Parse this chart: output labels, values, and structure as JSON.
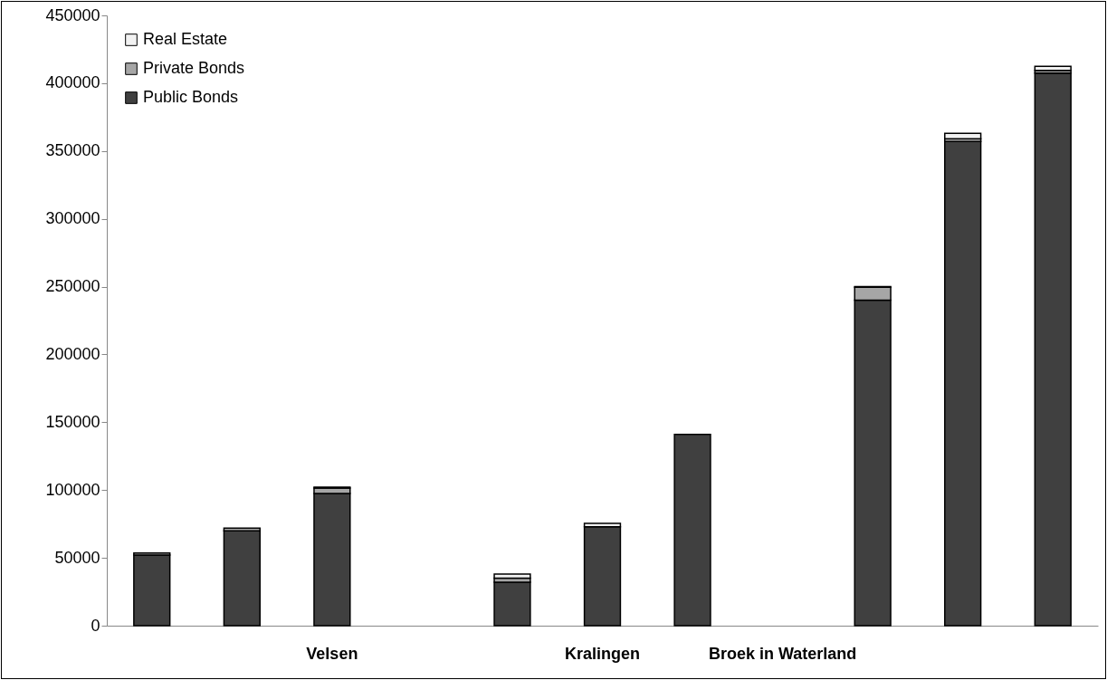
{
  "chart_data": {
    "type": "bar",
    "stacked": true,
    "categories": [
      null,
      null,
      "Velsen",
      null,
      null,
      "Kralingen",
      null,
      "Broek in Waterland",
      null,
      null,
      null
    ],
    "series": [
      {
        "name": "Public Bonds",
        "color": "#404040",
        "values": [
          52000,
          70000,
          97500,
          null,
          32000,
          73000,
          141000,
          null,
          240000,
          357000,
          407500
        ]
      },
      {
        "name": "Private Bonds",
        "color": "#a6a6a6",
        "values": [
          1500,
          2000,
          4000,
          null,
          3000,
          null,
          0,
          null,
          9500,
          2000,
          2000
        ]
      },
      {
        "name": "Real Estate",
        "color": "#f2f2f2",
        "values": [
          0,
          0,
          700,
          null,
          3000,
          2500,
          0,
          null,
          500,
          4000,
          3000
        ]
      }
    ],
    "ylim": [
      0,
      450000
    ],
    "yticks": [
      0,
      50000,
      100000,
      150000,
      200000,
      250000,
      300000,
      350000,
      400000,
      450000
    ],
    "grid": false,
    "legend": "top left"
  }
}
